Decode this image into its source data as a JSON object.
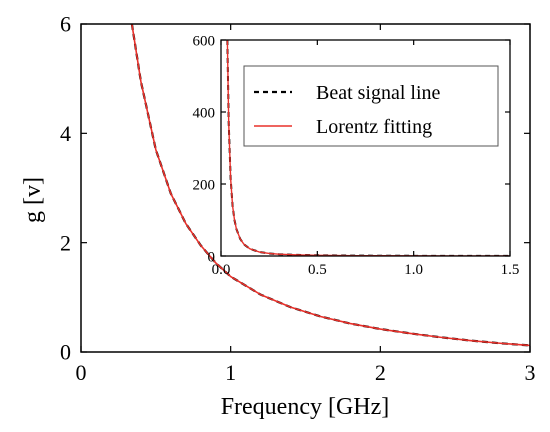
{
  "chart_data": [
    {
      "type": "line",
      "role": "main",
      "xlabel": "Frequency [GHz]",
      "ylabel": "g [v]",
      "xlim": [
        0,
        3
      ],
      "ylim": [
        0,
        6
      ],
      "xticks": [
        0,
        1,
        2,
        3
      ],
      "yticks": [
        0,
        2,
        4,
        6
      ],
      "xtick_labels": [
        "0",
        "1",
        "2",
        "3"
      ],
      "ytick_labels": [
        "0",
        "2",
        "4",
        "6"
      ],
      "grid": false,
      "series": [
        {
          "name": "Beat signal line",
          "color": "#000000",
          "style": "dashed",
          "x": [
            0.34,
            0.4,
            0.5,
            0.6,
            0.7,
            0.8,
            0.9,
            1.0,
            1.2,
            1.4,
            1.6,
            1.8,
            2.0,
            2.2,
            2.4,
            2.6,
            2.8,
            3.0
          ],
          "y": [
            6.0,
            4.95,
            3.7,
            2.9,
            2.35,
            1.95,
            1.63,
            1.38,
            1.05,
            0.82,
            0.65,
            0.52,
            0.42,
            0.34,
            0.27,
            0.21,
            0.16,
            0.12
          ]
        },
        {
          "name": "Lorentz fitting",
          "color": "#e8302a",
          "style": "solid",
          "x": [
            0.34,
            0.4,
            0.5,
            0.6,
            0.7,
            0.8,
            0.9,
            1.0,
            1.2,
            1.4,
            1.6,
            1.8,
            2.0,
            2.2,
            2.4,
            2.6,
            2.8,
            3.0
          ],
          "y": [
            6.0,
            4.95,
            3.7,
            2.9,
            2.35,
            1.95,
            1.63,
            1.38,
            1.05,
            0.82,
            0.65,
            0.52,
            0.42,
            0.34,
            0.27,
            0.21,
            0.16,
            0.12
          ]
        }
      ]
    },
    {
      "type": "line",
      "role": "inset",
      "xlim": [
        0,
        1.5
      ],
      "ylim": [
        0,
        600
      ],
      "xticks": [
        0,
        0.5,
        1.0,
        1.5
      ],
      "yticks": [
        0,
        200,
        400,
        600
      ],
      "xtick_labels": [
        "0.0",
        "0.5",
        "1.0",
        "1.5"
      ],
      "ytick_labels": [
        "0",
        "200",
        "400",
        "600"
      ],
      "grid": false,
      "legend": "top-right",
      "series": [
        {
          "name": "Beat signal line",
          "color": "#000000",
          "style": "dashed",
          "x": [
            0.033,
            0.04,
            0.05,
            0.06,
            0.07,
            0.08,
            0.1,
            0.12,
            0.15,
            0.2,
            0.25,
            0.3,
            0.4,
            0.5,
            0.7,
            1.0,
            1.2,
            1.5
          ],
          "y": [
            600,
            370,
            215,
            140,
            100,
            75,
            47,
            32,
            20,
            11,
            7,
            5,
            3,
            2,
            1,
            0.5,
            0.3,
            0.2
          ]
        },
        {
          "name": "Lorentz fitting",
          "color": "#e8302a",
          "style": "solid",
          "x": [
            0.033,
            0.04,
            0.05,
            0.06,
            0.07,
            0.08,
            0.1,
            0.12,
            0.15,
            0.2,
            0.25,
            0.3,
            0.4,
            0.5,
            0.7,
            1.0,
            1.2,
            1.5
          ],
          "y": [
            600,
            370,
            215,
            140,
            100,
            75,
            47,
            32,
            20,
            11,
            7,
            5,
            3,
            2,
            1,
            0.5,
            0.3,
            0.2
          ]
        }
      ]
    }
  ]
}
